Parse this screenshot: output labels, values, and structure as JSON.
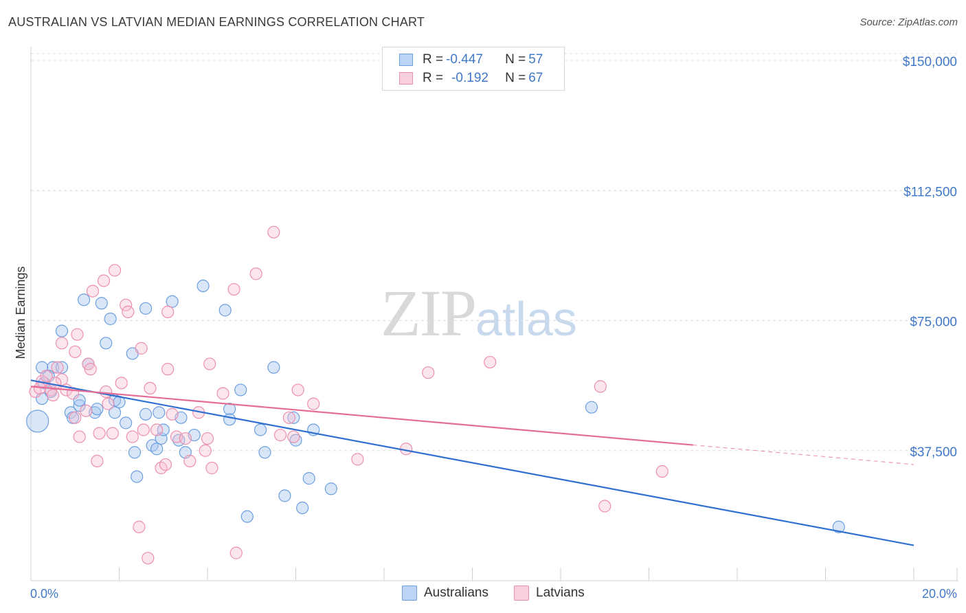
{
  "title": "AUSTRALIAN VS LATVIAN MEDIAN EARNINGS CORRELATION CHART",
  "source": "Source: ZipAtlas.com",
  "watermark": {
    "zip": "ZIP",
    "atlas": "atlas"
  },
  "legend": {
    "rows": [
      {
        "r_label": "R = ",
        "r_value": "-0.447",
        "n_label": "N = ",
        "n_value": "57",
        "color": "#a9c8f0",
        "border": "#6c9fe0"
      },
      {
        "r_label": "R = ",
        "r_value": "-0.192",
        "n_label": "N = ",
        "n_value": "67",
        "color": "#f8c0d2",
        "border": "#ec8fae"
      }
    ]
  },
  "bottom_legend": [
    {
      "label": "Australians",
      "color": "#bcd4f5",
      "border": "#6c9fe0"
    },
    {
      "label": "Latvians",
      "color": "#f9cfdc",
      "border": "#ec8fae"
    }
  ],
  "chart_data": {
    "type": "scatter",
    "title": "AUSTRALIAN VS LATVIAN MEDIAN EARNINGS CORRELATION CHART",
    "xlabel": "",
    "ylabel": "Median Earnings",
    "xlim": [
      0,
      20
    ],
    "ylim": [
      0,
      155000
    ],
    "x_tick_labels": [
      "0.0%",
      "20.0%"
    ],
    "y_ticks": [
      37500,
      75000,
      112500,
      150000
    ],
    "y_tick_labels": [
      "$37,500",
      "$75,000",
      "$112,500",
      "$150,000"
    ],
    "series": [
      {
        "name": "Australians",
        "color": "#6c9fe0",
        "fill": "rgba(169,200,240,0.45)",
        "line_color": "#2f6fd0",
        "trend": {
          "x0": 0.0,
          "y0": 57800,
          "x1": 20.0,
          "y1": 10200,
          "dash_from": null
        },
        "points": [
          [
            0.15,
            46000,
            "big"
          ],
          [
            0.3,
            57000
          ],
          [
            0.5,
            61500
          ],
          [
            0.25,
            61500
          ],
          [
            0.7,
            61500
          ],
          [
            0.4,
            59000
          ],
          [
            0.25,
            52500
          ],
          [
            0.7,
            72000
          ],
          [
            1.2,
            81000
          ],
          [
            1.6,
            80000
          ],
          [
            1.8,
            75500
          ],
          [
            1.7,
            68500
          ],
          [
            1.3,
            62500
          ],
          [
            0.9,
            48500
          ],
          [
            1.1,
            50500
          ],
          [
            1.1,
            52000
          ],
          [
            0.95,
            47000
          ],
          [
            1.45,
            48500
          ],
          [
            1.5,
            49500
          ],
          [
            1.9,
            52000
          ],
          [
            2.0,
            51500
          ],
          [
            1.9,
            48500
          ],
          [
            2.15,
            45500
          ],
          [
            2.35,
            37000
          ],
          [
            2.4,
            30000
          ],
          [
            2.3,
            65500
          ],
          [
            2.6,
            78500
          ],
          [
            2.6,
            48000
          ],
          [
            2.75,
            39000
          ],
          [
            2.95,
            41000
          ],
          [
            2.9,
            48500
          ],
          [
            3.0,
            43500
          ],
          [
            3.2,
            80500
          ],
          [
            3.4,
            47000
          ],
          [
            3.35,
            40500
          ],
          [
            3.5,
            37000
          ],
          [
            3.7,
            42000
          ],
          [
            3.9,
            85000
          ],
          [
            4.4,
            78000
          ],
          [
            4.5,
            49500
          ],
          [
            4.5,
            46500
          ],
          [
            4.75,
            55000
          ],
          [
            4.9,
            18500
          ],
          [
            5.2,
            43500
          ],
          [
            5.3,
            37000
          ],
          [
            5.5,
            61500
          ],
          [
            5.75,
            24500
          ],
          [
            5.95,
            47000
          ],
          [
            6.0,
            40500
          ],
          [
            6.15,
            21000
          ],
          [
            6.3,
            29500
          ],
          [
            6.4,
            43500
          ],
          [
            6.8,
            26500
          ],
          [
            2.85,
            38000
          ],
          [
            12.7,
            50000
          ],
          [
            18.3,
            15500
          ],
          [
            0.45,
            54500
          ]
        ]
      },
      {
        "name": "Latvians",
        "color": "#ec8fae",
        "fill": "rgba(248,192,210,0.40)",
        "line_color": "#e46d97",
        "trend": {
          "x0": 0.0,
          "y0": 56000,
          "x1": 20.0,
          "y1": 33500,
          "dash_from": 15.0
        },
        "points": [
          [
            0.1,
            54500
          ],
          [
            0.25,
            57500
          ],
          [
            0.35,
            59000
          ],
          [
            0.45,
            55000
          ],
          [
            0.5,
            53500
          ],
          [
            0.6,
            61500
          ],
          [
            0.7,
            58000
          ],
          [
            0.7,
            68500
          ],
          [
            0.8,
            55000
          ],
          [
            0.95,
            54000
          ],
          [
            1.0,
            47000
          ],
          [
            1.0,
            66000
          ],
          [
            1.05,
            71000
          ],
          [
            1.1,
            41500
          ],
          [
            1.25,
            49000
          ],
          [
            1.3,
            62500
          ],
          [
            1.35,
            61000
          ],
          [
            1.4,
            83500
          ],
          [
            1.5,
            34500
          ],
          [
            1.55,
            42500
          ],
          [
            1.65,
            86500
          ],
          [
            1.7,
            54500
          ],
          [
            1.75,
            51000
          ],
          [
            1.9,
            89500
          ],
          [
            1.85,
            42500
          ],
          [
            2.05,
            57000
          ],
          [
            2.15,
            79500
          ],
          [
            2.2,
            77500
          ],
          [
            2.3,
            41500
          ],
          [
            2.45,
            15500
          ],
          [
            2.5,
            67000
          ],
          [
            2.55,
            43500
          ],
          [
            2.65,
            6500
          ],
          [
            2.7,
            55500
          ],
          [
            2.85,
            43500
          ],
          [
            2.95,
            32500
          ],
          [
            3.05,
            33500
          ],
          [
            3.1,
            77500
          ],
          [
            3.1,
            61000
          ],
          [
            3.2,
            48000
          ],
          [
            3.3,
            41500
          ],
          [
            3.5,
            41000
          ],
          [
            3.6,
            34500
          ],
          [
            3.8,
            48500
          ],
          [
            3.95,
            37500
          ],
          [
            4.0,
            41000
          ],
          [
            4.05,
            62500
          ],
          [
            4.1,
            32500
          ],
          [
            4.35,
            54000
          ],
          [
            4.6,
            84000
          ],
          [
            4.65,
            8000
          ],
          [
            5.1,
            88500
          ],
          [
            5.5,
            100500
          ],
          [
            5.65,
            42000
          ],
          [
            5.85,
            47000
          ],
          [
            5.95,
            41500
          ],
          [
            6.05,
            55000
          ],
          [
            6.4,
            51000
          ],
          [
            7.4,
            35000
          ],
          [
            8.5,
            38000
          ],
          [
            9.0,
            60000
          ],
          [
            10.4,
            63000
          ],
          [
            12.9,
            56000
          ],
          [
            13.0,
            21500
          ],
          [
            14.3,
            31500
          ],
          [
            0.2,
            55500
          ],
          [
            0.55,
            57000
          ]
        ]
      }
    ]
  }
}
